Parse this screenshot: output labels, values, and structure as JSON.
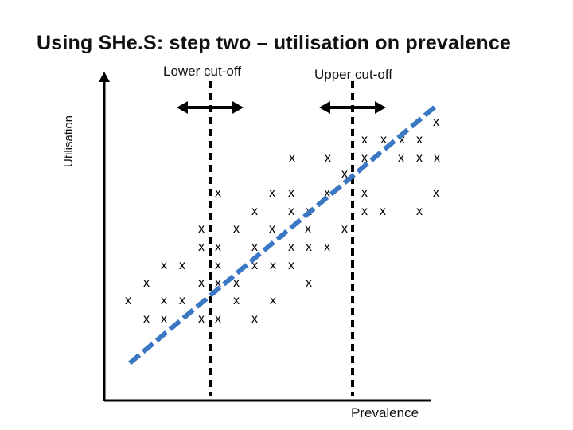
{
  "title": "Using SHe.S: step two – utilisation on prevalence",
  "lower_cutoff_label": "Lower cut-off",
  "upper_cutoff_label": "Upper cut-off",
  "y_axis_label": "Utilisation",
  "x_axis_label": "Prevalence",
  "point_marker": "x",
  "colors": {
    "trend_line": "#3a78c4",
    "axes": "#000000",
    "cutoff_lines": "#000000"
  }
}
